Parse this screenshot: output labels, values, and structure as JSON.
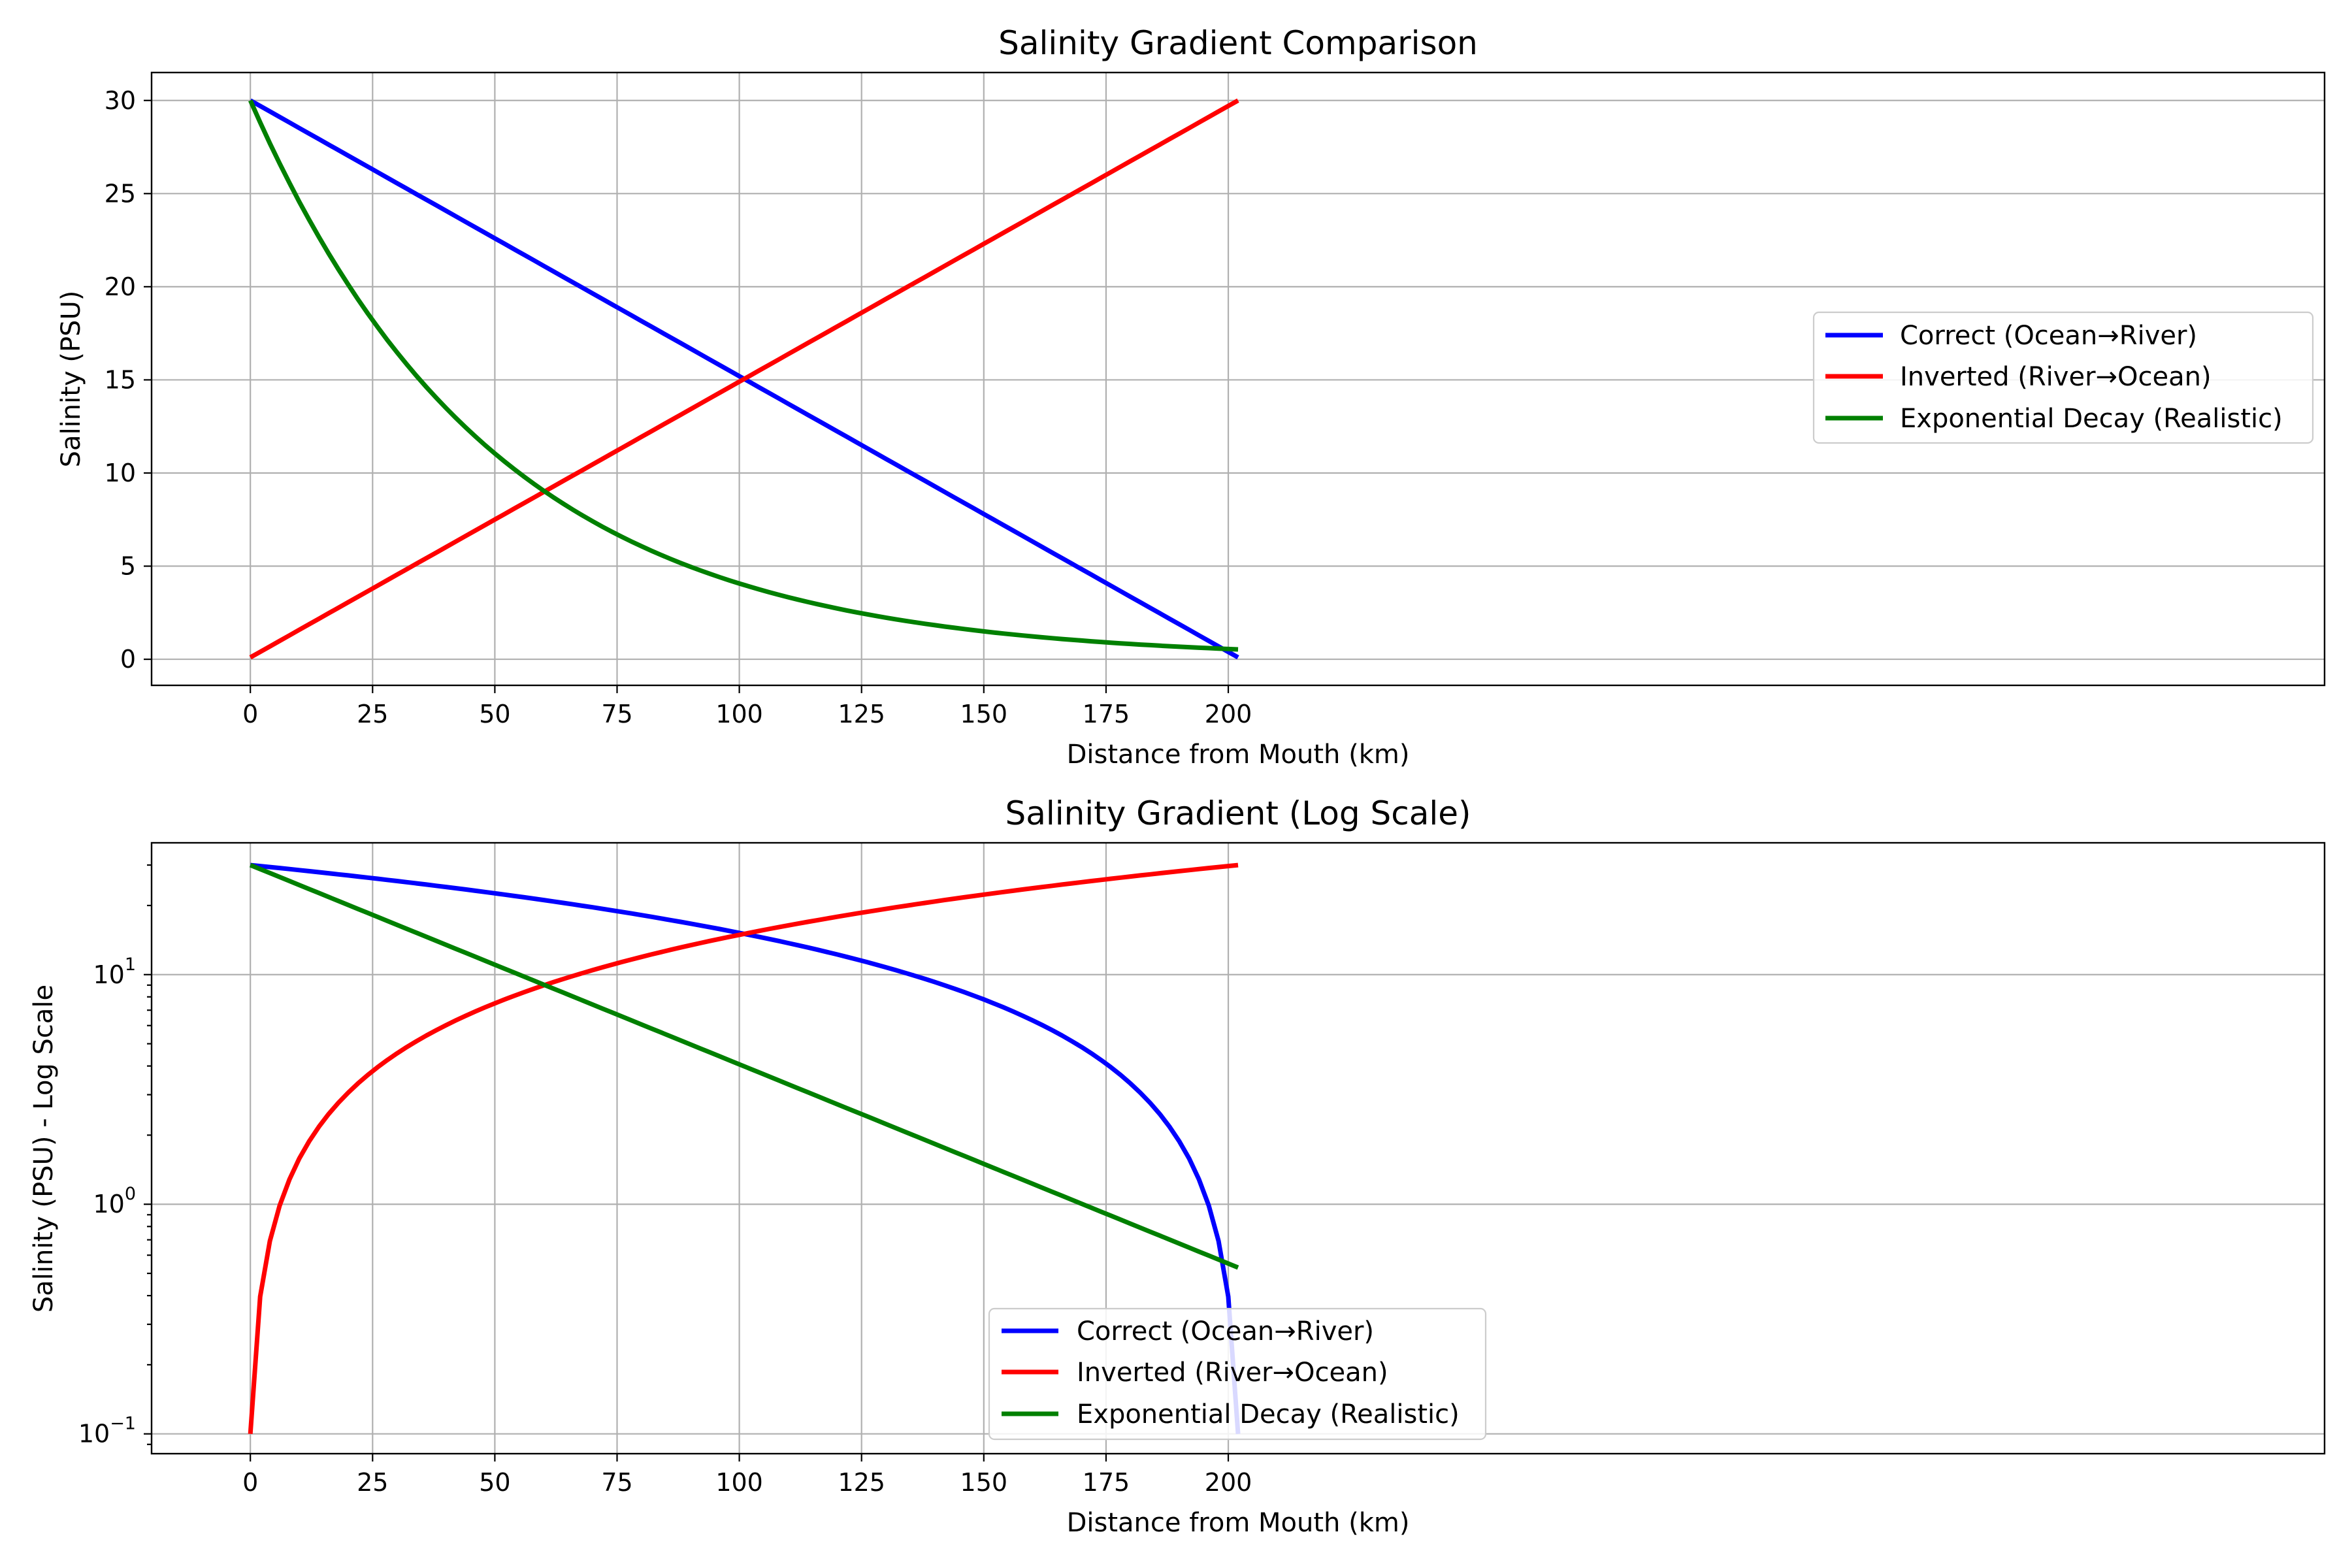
{
  "chart_data": [
    {
      "type": "line",
      "title": "Salinity Gradient Comparison",
      "xlabel": "Distance from Mouth (km)",
      "ylabel": "Salinity (PSU)",
      "xlim": [
        -20.2,
        424.2
      ],
      "ylim": [
        -1.4,
        31.5
      ],
      "xscale": "linear",
      "yscale": "linear",
      "xticks": [
        0,
        25,
        50,
        75,
        100,
        125,
        150,
        175,
        200
      ],
      "yticks": [
        0,
        5,
        10,
        15,
        20,
        25,
        30
      ],
      "grid": true,
      "legend": "center-right",
      "series": [
        {
          "name": "Correct (Ocean→River)",
          "color": "#0000ff",
          "model": "linear",
          "x0": 0,
          "x1": 202,
          "y0": 30,
          "y1": 0.1
        },
        {
          "name": "Inverted (River→Ocean)",
          "color": "#ff0000",
          "model": "linear",
          "x0": 0,
          "x1": 202,
          "y0": 0.1,
          "y1": 30
        },
        {
          "name": "Exponential Decay (Realistic)",
          "color": "#008000",
          "model": "exponential",
          "x0": 0,
          "x1": 202,
          "y0": 30,
          "y1": 0.53
        }
      ]
    },
    {
      "type": "line",
      "title": "Salinity Gradient (Log Scale)",
      "xlabel": "Distance from Mouth (km)",
      "ylabel": "Salinity (PSU) - Log Scale",
      "xlim": [
        -20.2,
        424.2
      ],
      "ylim": [
        0.082,
        37.5
      ],
      "xscale": "linear",
      "yscale": "log",
      "xticks": [
        0,
        25,
        50,
        75,
        100,
        125,
        150,
        175,
        200
      ],
      "yticks": [
        0.1,
        1,
        10
      ],
      "ytick_labels": [
        {
          "base": "10",
          "exp": "−1"
        },
        {
          "base": "10",
          "exp": "0"
        },
        {
          "base": "10",
          "exp": "1"
        }
      ],
      "grid": true,
      "legend": "lower-center",
      "series": [
        {
          "name": "Correct (Ocean→River)",
          "color": "#0000ff",
          "model": "linear",
          "x0": 0,
          "x1": 202,
          "y0": 30,
          "y1": 0.1
        },
        {
          "name": "Inverted (River→Ocean)",
          "color": "#ff0000",
          "model": "linear",
          "x0": 0,
          "x1": 202,
          "y0": 0.1,
          "y1": 30
        },
        {
          "name": "Exponential Decay (Realistic)",
          "color": "#008000",
          "model": "exponential",
          "x0": 0,
          "x1": 202,
          "y0": 30,
          "y1": 0.53
        }
      ]
    }
  ]
}
